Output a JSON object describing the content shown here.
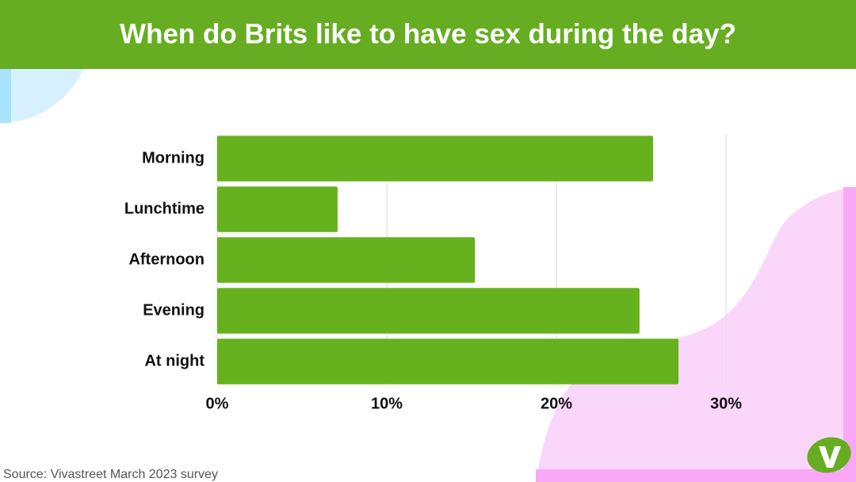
{
  "chart_data": {
    "type": "bar",
    "orientation": "horizontal",
    "title": "When do Brits like to have sex during the day?",
    "categories": [
      "Morning",
      "Lunchtime",
      "Afternoon",
      "Evening",
      "At night"
    ],
    "values": [
      25.7,
      7.1,
      15.2,
      24.9,
      27.2
    ],
    "color": "#66b21e",
    "xlim": [
      0,
      30
    ],
    "xticks": [
      {
        "value": 0,
        "label": "0%"
      },
      {
        "value": 10,
        "label": "10%"
      },
      {
        "value": 20,
        "label": "20%"
      },
      {
        "value": 30,
        "label": "30%"
      }
    ],
    "grid": true,
    "source": "Source: Vivastreet March 2023 survey"
  }
}
